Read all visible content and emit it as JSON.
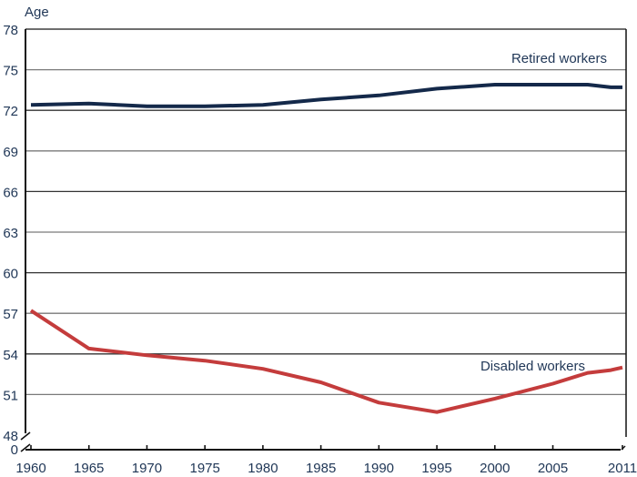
{
  "chart_data": {
    "type": "line",
    "title": "",
    "xlabel": "",
    "ylabel": "Age",
    "ylim": [
      48,
      78
    ],
    "y_break": {
      "below": 48,
      "shows_zero": true
    },
    "xlim": [
      1960,
      2011
    ],
    "grid": "horizontal",
    "y_ticks": [
      78,
      75,
      72,
      69,
      66,
      63,
      60,
      57,
      54,
      51,
      48
    ],
    "y_zero_label": "0",
    "x_ticks": [
      1960,
      1965,
      1970,
      1975,
      1980,
      1985,
      1990,
      1995,
      2000,
      2005,
      2011
    ],
    "x": [
      1960,
      1965,
      1970,
      1975,
      1980,
      1985,
      1990,
      1995,
      2000,
      2005,
      2008,
      2010,
      2011
    ],
    "series": [
      {
        "name": "Retired workers",
        "color": "#14294a",
        "values": [
          72.4,
          72.5,
          72.3,
          72.3,
          72.4,
          72.8,
          73.1,
          73.6,
          73.9,
          73.9,
          73.9,
          73.7,
          73.7
        ]
      },
      {
        "name": "Disabled workers",
        "color": "#c43c3c",
        "values": [
          57.2,
          54.4,
          53.9,
          53.5,
          52.9,
          51.9,
          50.4,
          49.7,
          50.7,
          51.8,
          52.6,
          52.8,
          53.0
        ]
      }
    ]
  }
}
